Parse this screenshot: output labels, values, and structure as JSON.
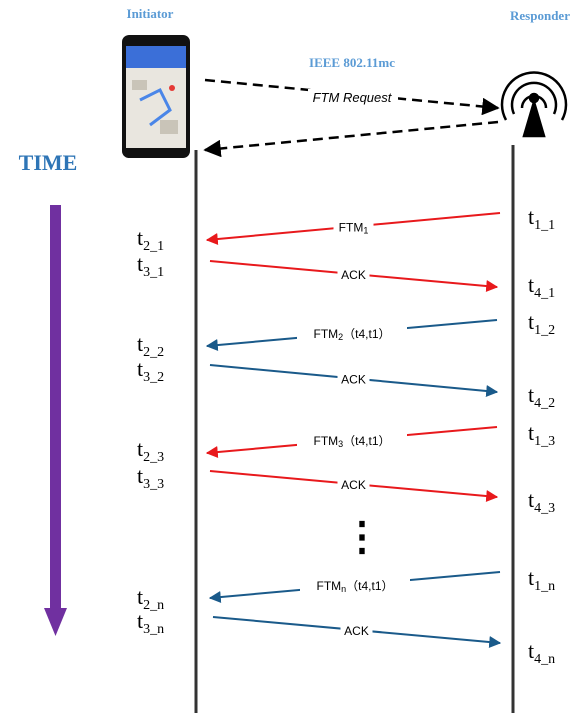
{
  "header": {
    "initiator": "Initiator",
    "responder": "Responder",
    "protocol": "IEEE 802.11mc",
    "request": "FTM Request",
    "time": "TIME",
    "ellipsis": "⋮"
  },
  "exchanges": [
    {
      "color": "#e8191c",
      "ftm": {
        "main": "FTM",
        "sub": "1",
        "suffix": ""
      },
      "ack": "ACK",
      "t1": {
        "base": "t",
        "sub": "1_1"
      },
      "t2": {
        "base": "t",
        "sub": "2_1"
      },
      "t3": {
        "base": "t",
        "sub": "3_1"
      },
      "t4": {
        "base": "t",
        "sub": "4_1"
      }
    },
    {
      "color": "#1a5a8a",
      "ftm": {
        "main": "FTM",
        "sub": "2",
        "suffix": "（t4,t1）"
      },
      "ack": "ACK",
      "t1": {
        "base": "t",
        "sub": "1_2"
      },
      "t2": {
        "base": "t",
        "sub": "2_2"
      },
      "t3": {
        "base": "t",
        "sub": "3_2"
      },
      "t4": {
        "base": "t",
        "sub": "4_2"
      }
    },
    {
      "color": "#e8191c",
      "ftm": {
        "main": "FTM",
        "sub": "3",
        "suffix": "（t4,t1）"
      },
      "ack": "ACK",
      "t1": {
        "base": "t",
        "sub": "1_3"
      },
      "t2": {
        "base": "t",
        "sub": "2_3"
      },
      "t3": {
        "base": "t",
        "sub": "3_3"
      },
      "t4": {
        "base": "t",
        "sub": "4_3"
      }
    },
    {
      "color": "#1a5a8a",
      "ftm": {
        "main": "FTM",
        "sub": "n",
        "suffix": "（t4,t1）"
      },
      "ack": "ACK",
      "t1": {
        "base": "t",
        "sub": "1_n"
      },
      "t2": {
        "base": "t",
        "sub": "2_n"
      },
      "t3": {
        "base": "t",
        "sub": "3_n"
      },
      "t4": {
        "base": "t",
        "sub": "4_n"
      }
    }
  ]
}
